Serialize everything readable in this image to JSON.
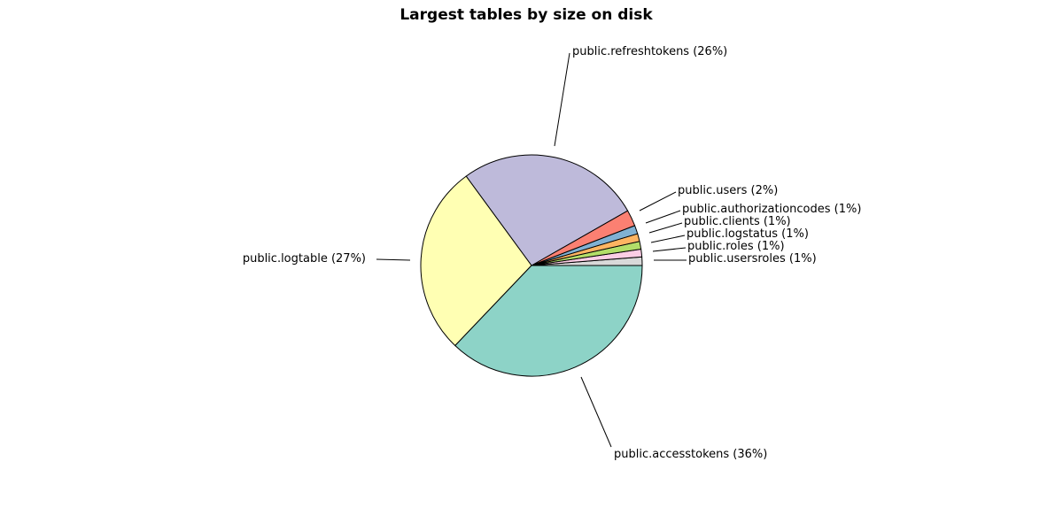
{
  "chart_data": {
    "type": "pie",
    "title": "Largest tables by size on disk",
    "slices": [
      {
        "name": "public.usersroles",
        "label": "public.usersroles (1%)",
        "value": 1.2,
        "color": "#d9d9d9"
      },
      {
        "name": "public.roles",
        "label": "public.roles (1%)",
        "value": 1.1,
        "color": "#fccde5"
      },
      {
        "name": "public.logstatus",
        "label": "public.logstatus (1%)",
        "value": 1.1,
        "color": "#b3de69"
      },
      {
        "name": "public.clients",
        "label": "public.clients (1%)",
        "value": 1.1,
        "color": "#fdb462"
      },
      {
        "name": "public.authorizationcodes",
        "label": "public.authorizationcodes (1%)",
        "value": 1.2,
        "color": "#80b1d3"
      },
      {
        "name": "public.users",
        "label": "public.users (2%)",
        "value": 2.3,
        "color": "#fb8072"
      },
      {
        "name": "public.refreshtokens",
        "label": "public.refreshtokens (26%)",
        "value": 26,
        "color": "#bebada"
      },
      {
        "name": "public.logtable",
        "label": "public.logtable (27%)",
        "value": 27,
        "color": "#ffffb3"
      },
      {
        "name": "public.accesstokens",
        "label": "public.accesstokens (36%)",
        "value": 36,
        "color": "#8dd3c7"
      }
    ],
    "start_angle_deg": 0,
    "direction": "counterclockwise"
  }
}
